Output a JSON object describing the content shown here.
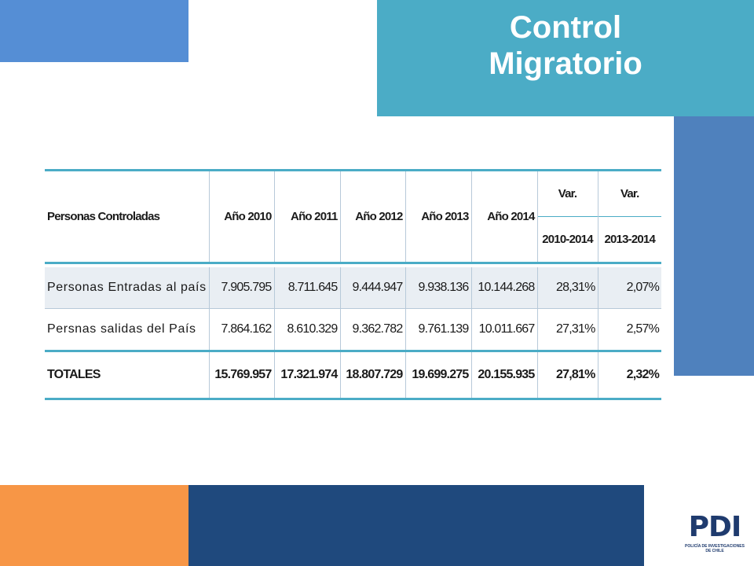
{
  "title": {
    "line1": "Control",
    "line2": "Migratorio"
  },
  "table": {
    "header": {
      "first": "Personas Controladas",
      "years": [
        "Año 2010",
        "Año 2011",
        "Año 2012",
        "Año 2013",
        "Año 2014"
      ],
      "var_label": [
        "Var.",
        "Var."
      ],
      "var_range": [
        "2010-2014",
        "2013-2014"
      ]
    },
    "rows": [
      {
        "label": "Personas Entradas al país",
        "values": [
          "7.905.795",
          "8.711.645",
          "9.444.947",
          "9.938.136",
          "10.144.268",
          "28,31%",
          "2,07%"
        ]
      },
      {
        "label": "Persnas salidas del País",
        "values": [
          "7.864.162",
          "8.610.329",
          "9.362.782",
          "9.761.139",
          "10.011.667",
          "27,31%",
          "2,57%"
        ]
      }
    ],
    "total": {
      "label": "TOTALES",
      "values": [
        "15.769.957",
        "17.321.974",
        "18.807.729",
        "19.699.275",
        "20.155.935",
        "27,81%",
        "2,32%"
      ]
    }
  },
  "logo": {
    "mark": "PDI",
    "sub": "POLICÍA DE INVESTIGACIONES DE CHILE"
  },
  "colors": {
    "accent_blue": "#558ed5",
    "title_teal": "#4bacc6",
    "side_blue": "#4f81bd",
    "orange": "#f79646",
    "navy": "#1f497d"
  }
}
